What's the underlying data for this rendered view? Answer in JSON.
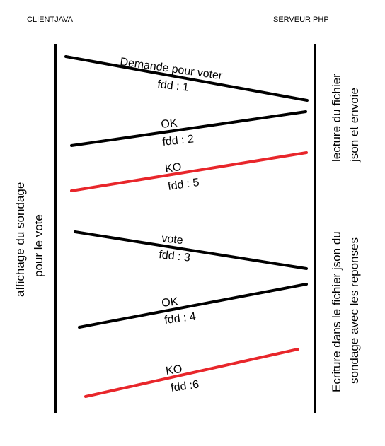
{
  "participants": {
    "client": "CLIENTJAVA",
    "server": "SERVEUR PHP"
  },
  "messages": [
    {
      "label": "Demande pour voter",
      "fdd": "fdd : 1",
      "color": "#000000"
    },
    {
      "label": "OK",
      "fdd": "fdd : 2",
      "color": "#000000"
    },
    {
      "label": "KO",
      "fdd": "fdd : 5",
      "color": "#e8262b"
    },
    {
      "label": "vote",
      "fdd": "fdd : 3",
      "color": "#000000"
    },
    {
      "label": "OK",
      "fdd": "fdd : 4",
      "color": "#000000"
    },
    {
      "label": "KO",
      "fdd": "fdd :6",
      "color": "#e8262b"
    }
  ],
  "client_note": [
    "affichage du sondage",
    "pour le vote"
  ],
  "server_notes": [
    [
      "lecture du fichier",
      "json et envoie"
    ],
    [
      "Ecriture dans le fichier json du",
      "sondage avec les reponses"
    ]
  ]
}
